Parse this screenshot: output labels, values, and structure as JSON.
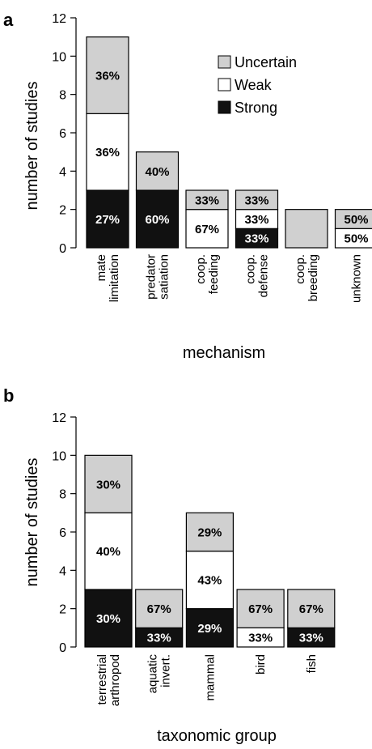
{
  "colors": {
    "Uncertain": "#d0d0d0",
    "Weak": "#ffffff",
    "Strong": "#111111",
    "text_on_dark": "#ffffff",
    "text_on_light": "#000000"
  },
  "chart_data": [
    {
      "type": "bar",
      "stacked": true,
      "panel": "a",
      "xlabel": "mechanism",
      "ylabel": "number of studies",
      "ylim": [
        0,
        12
      ],
      "yticks": [
        0,
        2,
        4,
        6,
        8,
        10,
        12
      ],
      "legend": {
        "placement": "top-right",
        "entries": [
          "Uncertain",
          "Weak",
          "Strong"
        ]
      },
      "categories": [
        [
          "mate",
          "limitation"
        ],
        [
          "predator",
          "satiation"
        ],
        [
          "coop.",
          "feeding"
        ],
        [
          "coop.",
          "defense"
        ],
        [
          "coop.",
          "breeding"
        ],
        [
          "unknown"
        ]
      ],
      "series": [
        {
          "name": "Strong",
          "values": [
            3,
            3,
            0,
            1,
            0,
            0
          ],
          "labels": [
            "27%",
            "60%",
            "",
            "33%",
            "",
            ""
          ]
        },
        {
          "name": "Weak",
          "values": [
            4,
            0,
            2,
            1,
            0,
            1
          ],
          "labels": [
            "36%",
            "",
            "67%",
            "33%",
            "",
            "50%"
          ]
        },
        {
          "name": "Uncertain",
          "values": [
            4,
            2,
            1,
            1,
            2,
            1
          ],
          "labels": [
            "36%",
            "40%",
            "33%",
            "33%",
            "",
            "50%"
          ]
        }
      ]
    },
    {
      "type": "bar",
      "stacked": true,
      "panel": "b",
      "xlabel": "taxonomic group",
      "ylabel": "number of studies",
      "ylim": [
        0,
        12
      ],
      "yticks": [
        0,
        2,
        4,
        6,
        8,
        10,
        12
      ],
      "categories": [
        [
          "terrestrial",
          "arthropod"
        ],
        [
          "aquatic",
          "invert."
        ],
        [
          "mammal"
        ],
        [
          "bird"
        ],
        [
          "fish"
        ]
      ],
      "series": [
        {
          "name": "Strong",
          "values": [
            3,
            1,
            2,
            0,
            1
          ],
          "labels": [
            "30%",
            "33%",
            "29%",
            "",
            "33%"
          ]
        },
        {
          "name": "Weak",
          "values": [
            4,
            0,
            3,
            1,
            0
          ],
          "labels": [
            "40%",
            "",
            "43%",
            "33%",
            ""
          ]
        },
        {
          "name": "Uncertain",
          "values": [
            3,
            2,
            2,
            2,
            2
          ],
          "labels": [
            "30%",
            "67%",
            "29%",
            "67%",
            "67%"
          ]
        }
      ]
    }
  ]
}
